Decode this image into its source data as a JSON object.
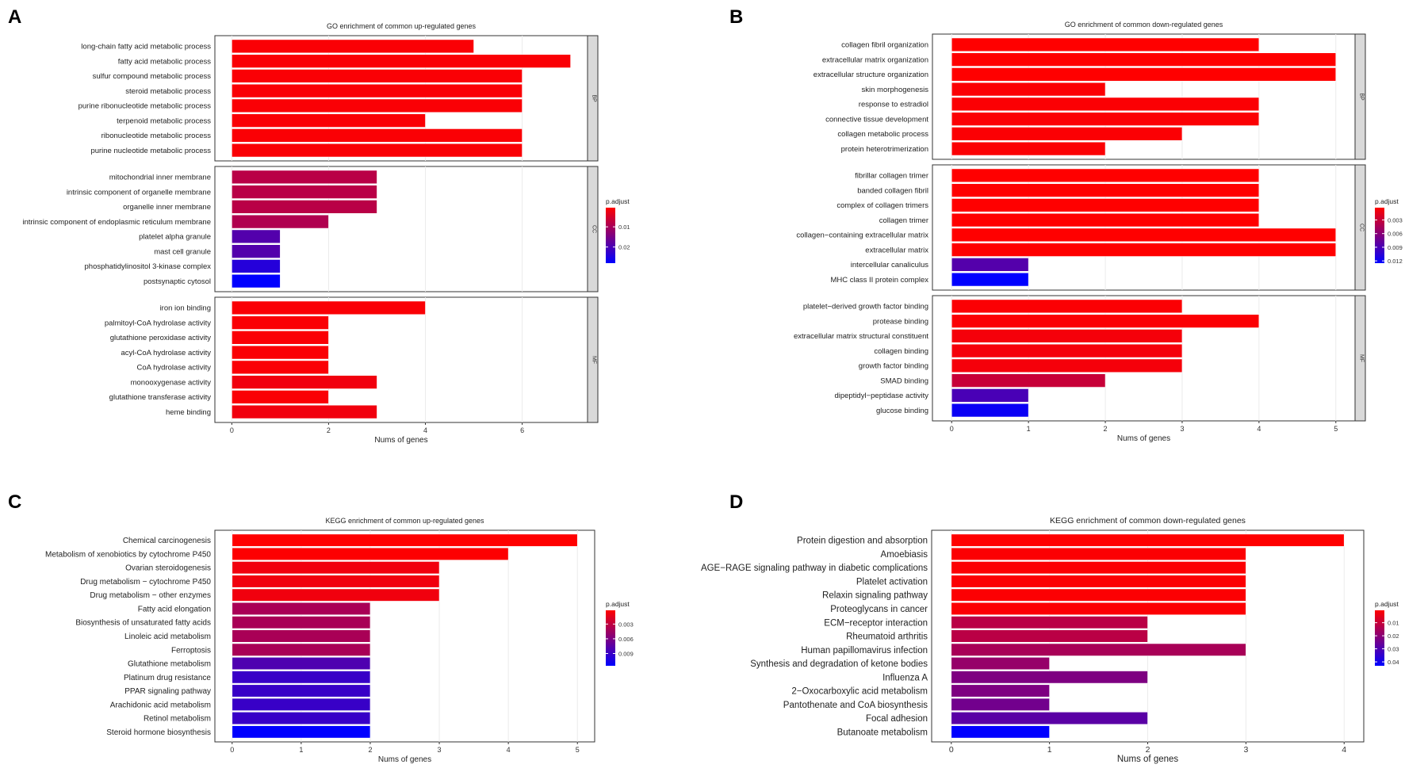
{
  "panels": [
    "A",
    "B",
    "C",
    "D"
  ],
  "legend_title": "p.adjust",
  "colors": {
    "low_p": "#ff0000",
    "high_p": "#0000ff",
    "grid": "#ebebeb",
    "strip": "#d9d9d9"
  },
  "chart_data": [
    {
      "type": "bar",
      "orientation": "horizontal",
      "title": "GO enrichment of common up-regulated genes",
      "xlabel": "Nums of genes",
      "xlim": [
        -0.35,
        7.35
      ],
      "xticks": [
        0,
        2,
        4,
        6
      ],
      "legend": {
        "range": [
          0.0005,
          0.028
        ],
        "ticks": [
          0.01,
          0.02
        ]
      },
      "facets": [
        {
          "name": "BP",
          "categories": [
            "long-chain fatty acid metabolic process",
            "fatty acid metabolic process",
            "sulfur compound metabolic process",
            "steroid metabolic process",
            "purine ribonucleotide metabolic process",
            "terpenoid metabolic process",
            "ribonucleotide metabolic process",
            "purine nucleotide metabolic process"
          ],
          "values": [
            5,
            7,
            6,
            6,
            6,
            4,
            6,
            6
          ],
          "padj": [
            0.001,
            0.001,
            0.001,
            0.001,
            0.001,
            0.001,
            0.001,
            0.001
          ]
        },
        {
          "name": "CC",
          "categories": [
            "mitochondrial inner membrane",
            "intrinsic component of organelle membrane",
            "organelle inner membrane",
            "intrinsic component of endoplasmic reticulum membrane",
            "platelet alpha granule",
            "mast cell granule",
            "phosphatidylinositol 3-kinase complex",
            "postsynaptic cytosol"
          ],
          "values": [
            3,
            3,
            3,
            2,
            1,
            1,
            1,
            1
          ],
          "padj": [
            0.008,
            0.008,
            0.008,
            0.009,
            0.019,
            0.019,
            0.024,
            0.028
          ]
        },
        {
          "name": "MF",
          "categories": [
            "iron ion binding",
            "palmitoyl-CoA hydrolase activity",
            "glutathione peroxidase activity",
            "acyl-CoA hydrolase activity",
            "CoA hydrolase activity",
            "monooxygenase activity",
            "glutathione transferase activity",
            "heme binding"
          ],
          "values": [
            4,
            2,
            2,
            2,
            2,
            3,
            2,
            3
          ],
          "padj": [
            0.001,
            0.001,
            0.001,
            0.001,
            0.001,
            0.002,
            0.001,
            0.002
          ]
        }
      ]
    },
    {
      "type": "bar",
      "orientation": "horizontal",
      "title": "GO enrichment of common down-regulated genes",
      "xlabel": "Nums of genes",
      "xlim": [
        -0.25,
        5.25
      ],
      "xticks": [
        0,
        1,
        2,
        3,
        4,
        5
      ],
      "legend": {
        "range": [
          0.0003,
          0.0125
        ],
        "ticks": [
          0.003,
          0.006,
          0.009,
          0.012
        ]
      },
      "facets": [
        {
          "name": "BP",
          "categories": [
            "collagen fibril organization",
            "extracellular matrix organization",
            "extracellular structure organization",
            "skin morphogenesis",
            "response to estradiol",
            "connective tissue development",
            "collagen metabolic process",
            "protein heterotrimerization"
          ],
          "values": [
            4,
            5,
            5,
            2,
            4,
            4,
            3,
            2
          ],
          "padj": [
            0.0003,
            0.0003,
            0.0003,
            0.0005,
            0.0005,
            0.0005,
            0.0005,
            0.0005
          ]
        },
        {
          "name": "CC",
          "categories": [
            "fibrillar collagen trimer",
            "banded collagen fibril",
            "complex of collagen trimers",
            "collagen trimer",
            "collagen−containing extracellular matrix",
            "extracellular matrix",
            "intercellular canaliculus",
            "MHC class II protein complex"
          ],
          "values": [
            4,
            4,
            4,
            4,
            5,
            5,
            1,
            1
          ],
          "padj": [
            0.0003,
            0.0003,
            0.0003,
            0.0003,
            0.0003,
            0.0003,
            0.0085,
            0.0125
          ]
        },
        {
          "name": "MF",
          "categories": [
            "platelet−derived growth factor binding",
            "protease binding",
            "extracellular matrix structural constituent",
            "collagen binding",
            "growth factor binding",
            "SMAD binding",
            "dipeptidyl−peptidase activity",
            "glucose binding"
          ],
          "values": [
            3,
            4,
            3,
            3,
            3,
            2,
            1,
            1
          ],
          "padj": [
            0.0005,
            0.0005,
            0.0008,
            0.0008,
            0.0008,
            0.003,
            0.009,
            0.012
          ]
        }
      ]
    },
    {
      "type": "bar",
      "orientation": "horizontal",
      "title": "KEGG enrichment of common up-regulated genes",
      "xlabel": "Nums of genes",
      "xlim": [
        -0.25,
        5.25
      ],
      "xticks": [
        0,
        1,
        2,
        3,
        4,
        5
      ],
      "legend": {
        "range": [
          0.0002,
          0.0115
        ],
        "ticks": [
          0.003,
          0.006,
          0.009
        ]
      },
      "facets": [
        {
          "name": "",
          "categories": [
            "Chemical carcinogenesis",
            "Metabolism of xenobiotics by cytochrome P450",
            "Ovarian steroidogenesis",
            "Drug metabolism − cytochrome P450",
            "Drug metabolism − other enzymes",
            "Fatty acid elongation",
            "Biosynthesis of unsaturated fatty acids",
            "Linoleic acid metabolism",
            "Ferroptosis",
            "Glutathione metabolism",
            "Platinum drug resistance",
            "PPAR signaling pathway",
            "Arachidonic acid metabolism",
            "Retinol metabolism",
            "Steroid hormone biosynthesis"
          ],
          "values": [
            5,
            4,
            3,
            3,
            3,
            2,
            2,
            2,
            2,
            2,
            2,
            2,
            2,
            2,
            2
          ],
          "padj": [
            0.0002,
            0.0003,
            0.0008,
            0.0008,
            0.0008,
            0.004,
            0.004,
            0.004,
            0.004,
            0.008,
            0.009,
            0.009,
            0.009,
            0.009,
            0.0115
          ]
        }
      ]
    },
    {
      "type": "bar",
      "orientation": "horizontal",
      "title": "KEGG enrichment of common down-regulated genes",
      "xlabel": "Nums of genes",
      "xlim": [
        -0.2,
        4.2
      ],
      "xticks": [
        0,
        1,
        2,
        3,
        4
      ],
      "legend": {
        "range": [
          0.0005,
          0.043
        ],
        "ticks": [
          0.01,
          0.02,
          0.03,
          0.04
        ]
      },
      "facets": [
        {
          "name": "",
          "categories": [
            "Protein digestion and absorption",
            "Amoebiasis",
            "AGE−RAGE signaling pathway in diabetic complications",
            "Platelet activation",
            "Relaxin signaling pathway",
            "Proteoglycans in cancer",
            "ECM−receptor interaction",
            "Rheumatoid arthritis",
            "Human papillomavirus infection",
            "Synthesis and degradation of ketone bodies",
            "Influenza A",
            "2−Oxocarboxylic acid metabolism",
            "Pantothenate and CoA biosynthesis",
            "Focal adhesion",
            "Butanoate metabolism"
          ],
          "values": [
            4,
            3,
            3,
            3,
            3,
            3,
            2,
            2,
            3,
            1,
            2,
            1,
            1,
            2,
            1
          ],
          "padj": [
            0.0005,
            0.001,
            0.001,
            0.001,
            0.001,
            0.001,
            0.012,
            0.012,
            0.015,
            0.018,
            0.022,
            0.022,
            0.024,
            0.028,
            0.043
          ]
        }
      ]
    }
  ]
}
